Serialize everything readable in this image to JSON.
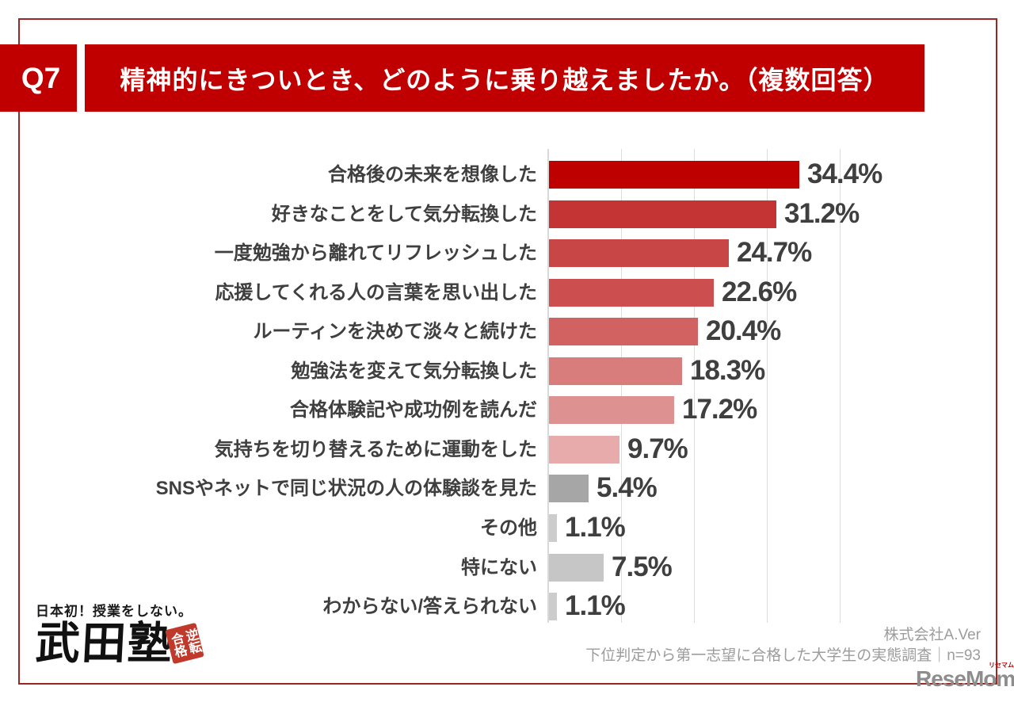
{
  "header": {
    "question_no": "Q7",
    "title": "精神的にきついとき、どのように乗り越えましたか。（複数回答）"
  },
  "chart_data": {
    "type": "bar",
    "orientation": "horizontal",
    "title": "精神的にきついとき、どのように乗り越えましたか。（複数回答）",
    "categories": [
      "合格後の未来を想像した",
      "好きなことをして気分転換した",
      "一度勉強から離れてリフレッシュした",
      "応援してくれる人の言葉を思い出した",
      "ルーティンを決めて淡々と続けた",
      "勉強法を変えて気分転換した",
      "合格体験記や成功例を読んだ",
      "気持ちを切り替えるために運動をした",
      "SNSやネットで同じ状況の人の体験談を見た",
      "その他",
      "特にない",
      "わからない/答えられない"
    ],
    "values": [
      34.4,
      31.2,
      24.7,
      22.6,
      20.4,
      18.3,
      17.2,
      9.7,
      5.4,
      1.1,
      7.5,
      1.1
    ],
    "value_labels": [
      "34.4%",
      "31.2%",
      "24.7%",
      "22.6%",
      "20.4%",
      "18.3%",
      "17.2%",
      "9.7%",
      "5.4%",
      "1.1%",
      "7.5%",
      "1.1%"
    ],
    "bar_colors": [
      "#bf0000",
      "#c43434",
      "#c94646",
      "#cc4e4e",
      "#d26161",
      "#d87c7c",
      "#de9191",
      "#e7abab",
      "#a6a6a6",
      "#cccccc",
      "#c6c6c6",
      "#cccccc"
    ],
    "xlim": [
      0,
      40
    ],
    "gridline_values": [
      10,
      20,
      30,
      40
    ],
    "grid": true,
    "legend": false
  },
  "footer": {
    "company": "株式会社A.Ver",
    "survey": "下位判定から第一志望に合格した大学生の実態調査｜n=93",
    "takeda": {
      "tagline": "日本初！授業をしない。",
      "brand": "武田塾",
      "seal": "逆転合格"
    },
    "resemom": {
      "brand": "ReseMom",
      "suffix": ".",
      "ruby": "リセマム"
    }
  },
  "colors": {
    "header_red": "#c00000",
    "frame_red": "#9a2723",
    "label_gray": "#3f3f3f",
    "source_gray": "#9c9c9c",
    "gridline_gray": "#dcdcdc",
    "seal_red": "#c0392b"
  }
}
